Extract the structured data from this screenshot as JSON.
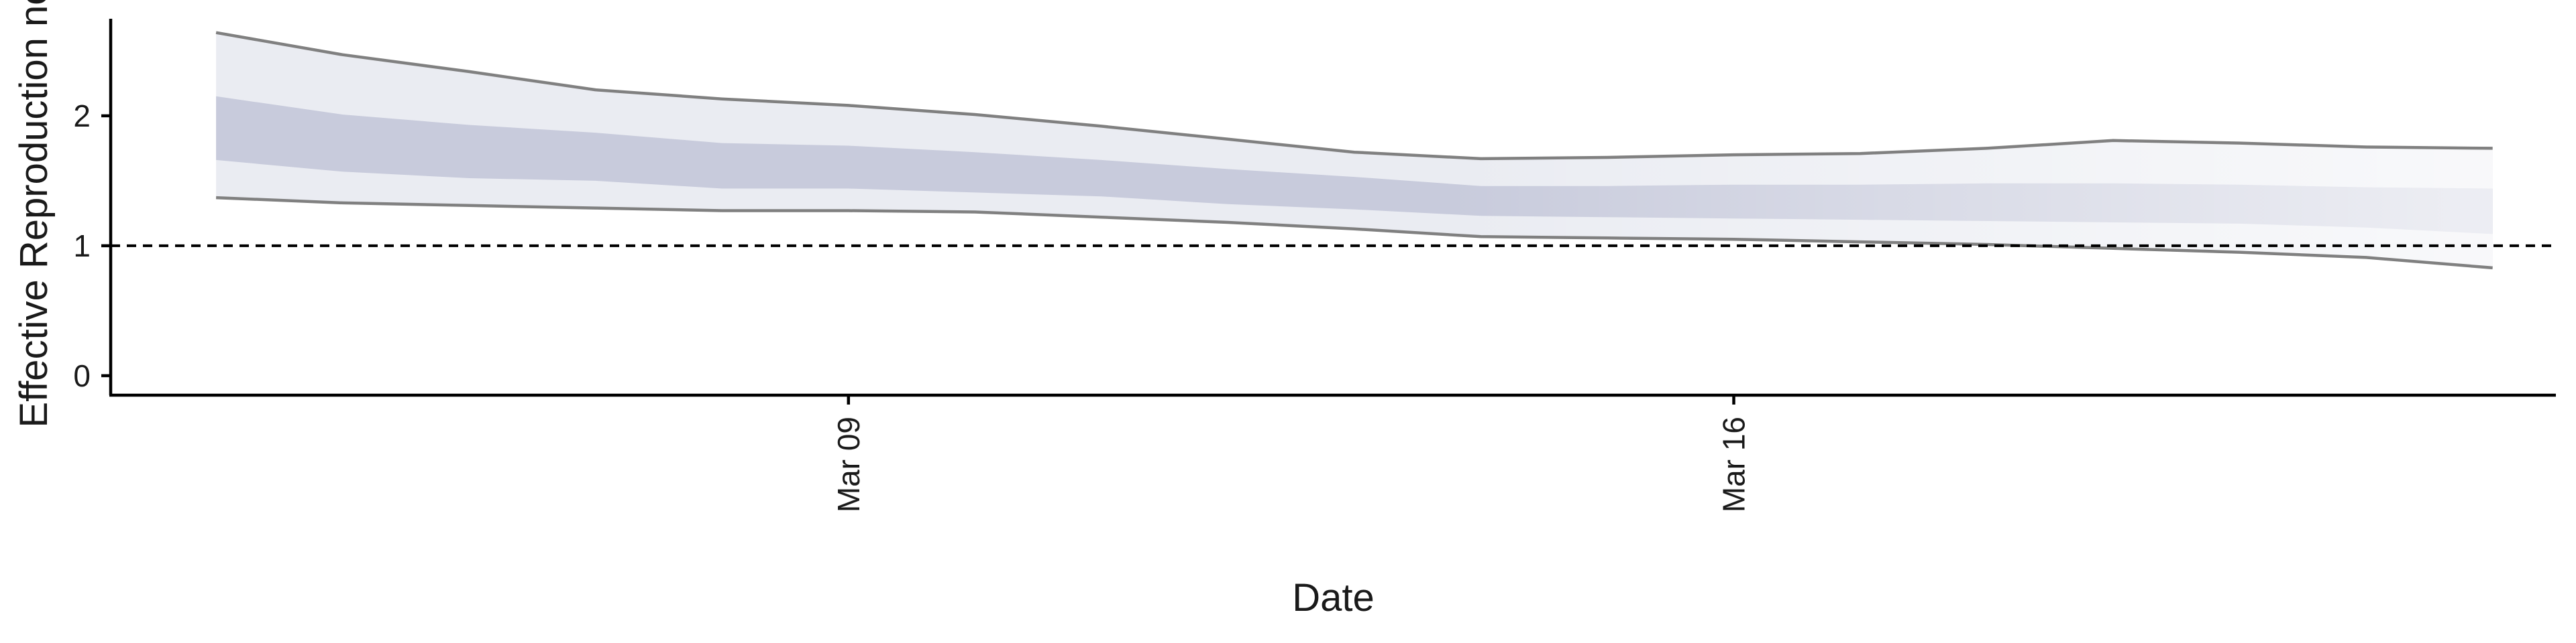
{
  "chart_data": {
    "type": "area",
    "title": "",
    "xlabel": "Date",
    "ylabel": "Effective Reproduction no.",
    "x": [
      "2020-03-04",
      "2020-03-05",
      "2020-03-06",
      "2020-03-07",
      "2020-03-08",
      "2020-03-09",
      "2020-03-10",
      "2020-03-11",
      "2020-03-12",
      "2020-03-13",
      "2020-03-14",
      "2020-03-15",
      "2020-03-16",
      "2020-03-17",
      "2020-03-18",
      "2020-03-19",
      "2020-03-20",
      "2020-03-21",
      "2020-03-22"
    ],
    "xticks": [
      {
        "date": "2020-03-09",
        "label": "Mar 09"
      },
      {
        "date": "2020-03-16",
        "label": "Mar 16"
      }
    ],
    "yticks": [
      0,
      1,
      2
    ],
    "ylim": [
      -0.15,
      2.85
    ],
    "xlim": [
      "2020-03-03T04:00",
      "2020-03-22T12:00"
    ],
    "reference_line": 1,
    "series": [
      {
        "lower_90": [
          1.37,
          1.33,
          1.31,
          1.29,
          1.27,
          1.27,
          1.26,
          1.22,
          1.18,
          1.13,
          1.07,
          1.06,
          1.05,
          1.03,
          1.01,
          0.98,
          0.95,
          0.91,
          0.83
        ],
        "upper_90": [
          2.64,
          2.47,
          2.34,
          2.2,
          2.13,
          2.08,
          2.01,
          1.92,
          1.82,
          1.72,
          1.67,
          1.68,
          1.7,
          1.71,
          1.75,
          1.81,
          1.79,
          1.76,
          1.75
        ],
        "lower_50": [
          1.66,
          1.57,
          1.52,
          1.5,
          1.44,
          1.44,
          1.41,
          1.38,
          1.32,
          1.28,
          1.23,
          1.22,
          1.21,
          1.2,
          1.19,
          1.18,
          1.17,
          1.14,
          1.09
        ],
        "upper_50": [
          2.15,
          2.01,
          1.93,
          1.87,
          1.79,
          1.77,
          1.72,
          1.66,
          1.59,
          1.53,
          1.46,
          1.46,
          1.47,
          1.47,
          1.48,
          1.48,
          1.47,
          1.45,
          1.44
        ]
      }
    ],
    "colors": {
      "outer_band": "#eaecf2",
      "inner_band": "#c8cbdc",
      "bound_line": "#808080",
      "reference_line": "#000000",
      "axis": "#000000"
    },
    "grid": false,
    "legend": "none"
  }
}
